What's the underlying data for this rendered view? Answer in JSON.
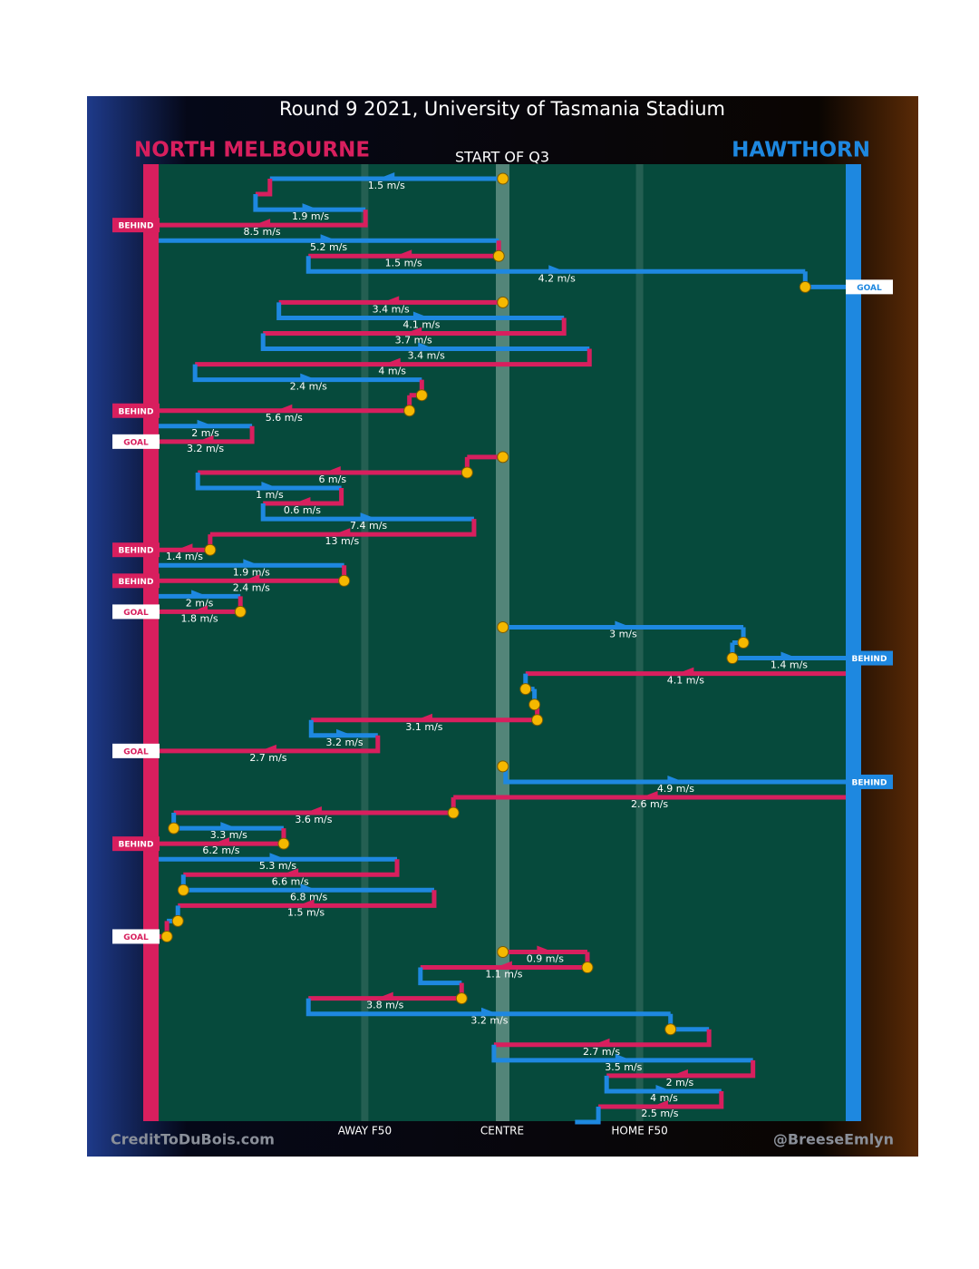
{
  "title": "Round 9 2021, University of Tasmania Stadium",
  "subtitle": "START OF Q3",
  "teams": [
    {
      "name": "NORTH MELBOURNE",
      "color": "#d81f5e"
    },
    {
      "name": "HAWTHORN",
      "color": "#1e88e0"
    }
  ],
  "footer_left": "CreditToDuBois.com",
  "footer_right": "@BreeseEmlyn",
  "xlim": [
    0,
    100
  ],
  "xticks": [
    {
      "value": 30,
      "label": "AWAY F50"
    },
    {
      "value": 50,
      "label": "CENTRE"
    },
    {
      "value": 70,
      "label": "HOME F50"
    }
  ],
  "segments": [
    {
      "team": 1,
      "from": 50.1,
      "to": 16.2,
      "label": "1.5 m/s",
      "contest": true
    },
    {
      "team": 0,
      "from": 16.2,
      "to": 14.1
    },
    {
      "team": 1,
      "from": 14.1,
      "to": 30.1,
      "label": "1.9 m/s"
    },
    {
      "team": 0,
      "from": 30.1,
      "to": 0,
      "label": "8.5 m/s",
      "result": "BEHIND"
    },
    {
      "team": 1,
      "from": 0,
      "to": 49.5,
      "label": "5.2 m/s"
    },
    {
      "team": 0,
      "from": 49.5,
      "to": 21.8,
      "label": "1.5 m/s",
      "contest": true
    },
    {
      "team": 1,
      "from": 21.8,
      "to": 94.1,
      "label": "4.2 m/s"
    },
    {
      "team": 1,
      "from": 94.1,
      "to": 100,
      "result": "GOAL",
      "contest": true
    },
    {
      "team": 0,
      "from": 50.1,
      "to": 17.5,
      "label": "3.4 m/s",
      "contest": true,
      "restart": true
    },
    {
      "team": 1,
      "from": 17.5,
      "to": 59.0,
      "label": "4.1 m/s"
    },
    {
      "team": 0,
      "from": 59.0,
      "to": 15.2,
      "label": "3.7 m/s"
    },
    {
      "team": 1,
      "from": 15.2,
      "to": 62.7,
      "label": "3.4 m/s"
    },
    {
      "team": 0,
      "from": 62.7,
      "to": 5.3,
      "label": "4 m/s"
    },
    {
      "team": 1,
      "from": 5.3,
      "to": 38.3,
      "label": "2.4 m/s"
    },
    {
      "team": 0,
      "from": 38.3,
      "to": 36.5,
      "contest": true
    },
    {
      "team": 0,
      "from": 36.5,
      "to": 0,
      "label": "5.6 m/s",
      "result": "BEHIND",
      "contest": true
    },
    {
      "team": 1,
      "from": 0,
      "to": 13.6,
      "label": "2 m/s"
    },
    {
      "team": 0,
      "from": 13.6,
      "to": 0,
      "label": "3.2 m/s",
      "result": "GOAL"
    },
    {
      "team": 0,
      "from": 50.1,
      "to": 44.9,
      "contest": true,
      "restart": true
    },
    {
      "team": 0,
      "from": 44.9,
      "to": 5.7,
      "label": "6 m/s",
      "contest": true
    },
    {
      "team": 1,
      "from": 5.7,
      "to": 26.6,
      "label": "1 m/s"
    },
    {
      "team": 0,
      "from": 26.6,
      "to": 15.2,
      "label": "0.6 m/s"
    },
    {
      "team": 1,
      "from": 15.2,
      "to": 45.9,
      "label": "7.4 m/s"
    },
    {
      "team": 0,
      "from": 45.9,
      "to": 7.5,
      "label": "13 m/s"
    },
    {
      "team": 0,
      "from": 7.5,
      "to": 0,
      "label": "1.4 m/s",
      "result": "BEHIND",
      "contest": true
    },
    {
      "team": 1,
      "from": 0,
      "to": 27.0,
      "label": "1.9 m/s"
    },
    {
      "team": 0,
      "from": 27.0,
      "to": 0,
      "label": "2.4 m/s",
      "result": "BEHIND",
      "contest": true
    },
    {
      "team": 1,
      "from": 0,
      "to": 11.9,
      "label": "2 m/s"
    },
    {
      "team": 0,
      "from": 11.9,
      "to": 0,
      "label": "1.8 m/s",
      "result": "GOAL",
      "contest": true
    },
    {
      "team": 1,
      "from": 50.1,
      "to": 85.1,
      "label": "3 m/s",
      "contest": true,
      "restart": true
    },
    {
      "team": 1,
      "from": 85.1,
      "to": 83.5,
      "contest": true
    },
    {
      "team": 1,
      "from": 83.5,
      "to": 100,
      "label": "1.4 m/s",
      "result": "BEHIND",
      "contest": true
    },
    {
      "team": 0,
      "from": 100,
      "to": 53.4,
      "label": "4.1 m/s"
    },
    {
      "team": 1,
      "from": 53.4,
      "to": 54.7,
      "contest": true
    },
    {
      "team": 1,
      "from": 54.7,
      "to": 55.1,
      "contest": true
    },
    {
      "team": 0,
      "from": 55.1,
      "to": 22.2,
      "label": "3.1 m/s",
      "contest": true
    },
    {
      "team": 1,
      "from": 22.2,
      "to": 31.9,
      "label": "3.2 m/s"
    },
    {
      "team": 0,
      "from": 31.9,
      "to": 0,
      "label": "2.7 m/s",
      "result": "GOAL"
    },
    {
      "team": 0,
      "from": 50.1,
      "to": 50.5,
      "contest": true,
      "restart": true
    },
    {
      "team": 1,
      "from": 50.5,
      "to": 100,
      "label": "4.9 m/s",
      "result": "BEHIND"
    },
    {
      "team": 0,
      "from": 100,
      "to": 42.9,
      "label": "2.6 m/s"
    },
    {
      "team": 0,
      "from": 42.9,
      "to": 2.2,
      "label": "3.6 m/s",
      "contest": true
    },
    {
      "team": 1,
      "from": 2.2,
      "to": 18.2,
      "label": "3.3 m/s",
      "contest": true
    },
    {
      "team": 0,
      "from": 18.2,
      "to": 0,
      "label": "6.2 m/s",
      "result": "BEHIND",
      "contest": true
    },
    {
      "team": 1,
      "from": 0,
      "to": 34.7,
      "label": "5.3 m/s"
    },
    {
      "team": 0,
      "from": 34.7,
      "to": 3.6,
      "label": "6.6 m/s"
    },
    {
      "team": 1,
      "from": 3.6,
      "to": 40.1,
      "label": "6.8 m/s",
      "contest": true
    },
    {
      "team": 0,
      "from": 40.1,
      "to": 2.8,
      "label": "1.5 m/s"
    },
    {
      "team": 1,
      "from": 2.8,
      "to": 1.2,
      "contest": true
    },
    {
      "team": 0,
      "from": 1.2,
      "to": 0,
      "result": "GOAL",
      "contest": true
    },
    {
      "team": 0,
      "from": 50.1,
      "to": 62.4,
      "label": "0.9 m/s",
      "contest": true,
      "restart": true
    },
    {
      "team": 0,
      "from": 62.4,
      "to": 38.1,
      "label": "1.1 m/s",
      "contest": true
    },
    {
      "team": 1,
      "from": 38.1,
      "to": 44.1
    },
    {
      "team": 0,
      "from": 44.1,
      "to": 21.8,
      "label": "3.8 m/s",
      "contest": true
    },
    {
      "team": 1,
      "from": 21.8,
      "to": 74.5,
      "label": "3.2 m/s"
    },
    {
      "team": 1,
      "from": 74.5,
      "to": 80.1,
      "contest": true
    },
    {
      "team": 0,
      "from": 80.1,
      "to": 48.8,
      "label": "2.7 m/s"
    },
    {
      "team": 1,
      "from": 48.8,
      "to": 86.5,
      "label": "3.5 m/s"
    },
    {
      "team": 0,
      "from": 86.5,
      "to": 65.2,
      "label": "2 m/s"
    },
    {
      "team": 1,
      "from": 65.2,
      "to": 81.9,
      "label": "4 m/s"
    },
    {
      "team": 0,
      "from": 81.9,
      "to": 64.0,
      "label": "2.5 m/s"
    },
    {
      "team": 1,
      "from": 64.0,
      "to": 60.6
    }
  ]
}
